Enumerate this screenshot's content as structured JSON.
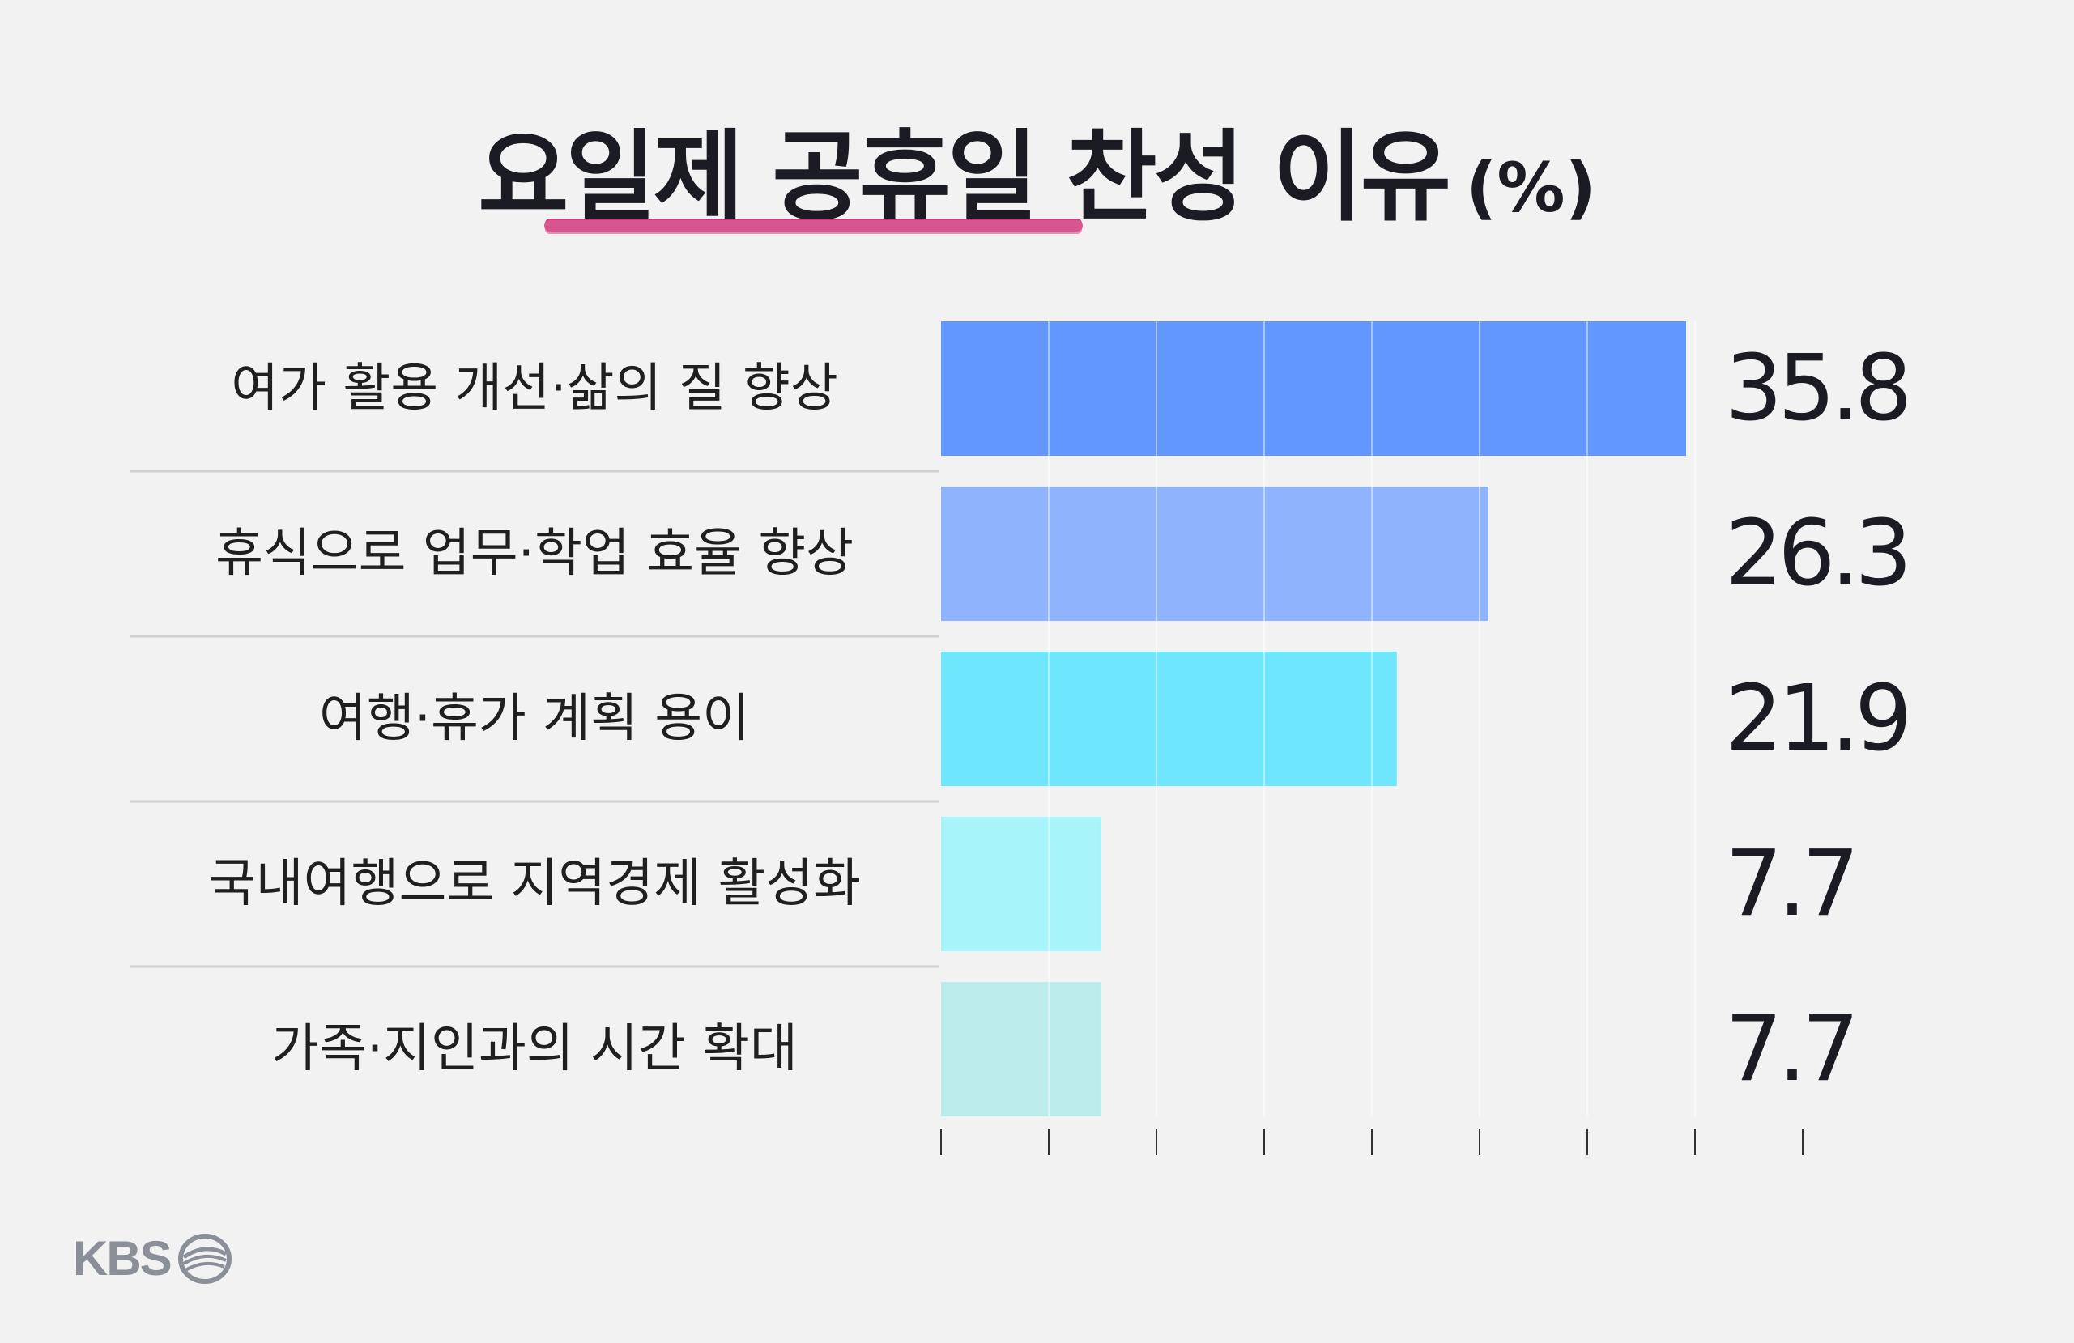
{
  "title": "요일제 공휴일 찬성 이유",
  "title_unit": "(%)",
  "brand": "KBS",
  "chart_data": {
    "type": "bar",
    "orientation": "horizontal",
    "title": "요일제 공휴일 찬성 이유",
    "unit": "%",
    "categories": [
      "여가 활용 개선·삶의 질 향상",
      "휴식으로 업무·학업 효율 향상",
      "여행·휴가 계획 용이",
      "국내여행으로 지역경제 활성화",
      "가족·지인과의 시간 확대"
    ],
    "values": [
      35.8,
      26.3,
      21.9,
      7.7,
      7.7
    ],
    "value_labels": [
      "35.8",
      "26.3",
      "21.9",
      "7.7",
      "7.7"
    ],
    "bar_colors": [
      "#6197fe",
      "#8fb4fd",
      "#6ee7fd",
      "#a7f5fa",
      "#bdedeb"
    ],
    "xlim": [
      0,
      35.8
    ],
    "grid": true,
    "legend": "none"
  }
}
